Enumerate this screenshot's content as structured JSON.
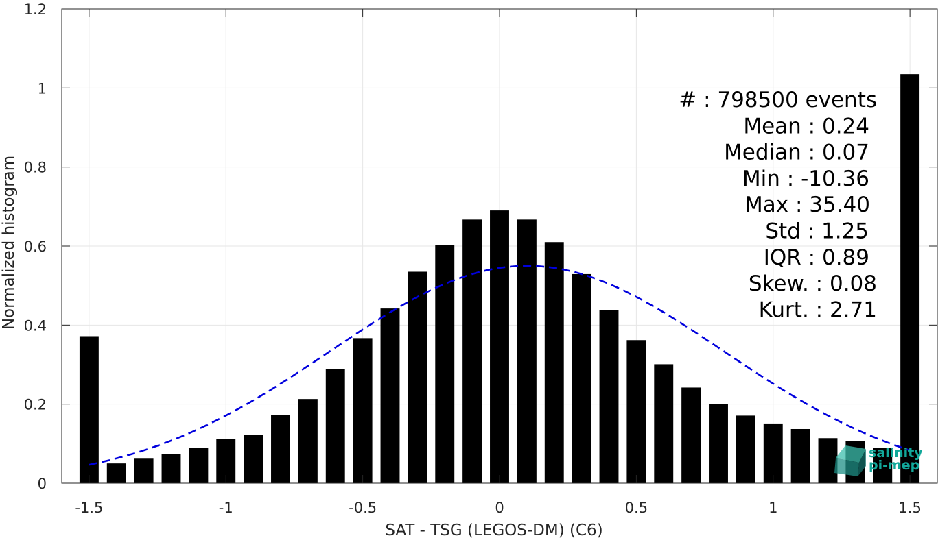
{
  "chart_data": {
    "type": "bar",
    "xlabel": "SAT - TSG (LEGOS-DM) (C6)",
    "ylabel": "Normalized histogram",
    "xlim": [
      -1.6,
      1.6
    ],
    "ylim": [
      0,
      1.2
    ],
    "xticks": [
      -1.5,
      -1,
      -0.5,
      0,
      0.5,
      1,
      1.5
    ],
    "xtick_labels": [
      "-1.5",
      "-1",
      "-0.5",
      "0",
      "0.5",
      "1",
      "1.5"
    ],
    "yticks": [
      0,
      0.2,
      0.4,
      0.6,
      0.8,
      1,
      1.2
    ],
    "ytick_labels": [
      "0",
      "0.2",
      "0.4",
      "0.6",
      "0.8",
      "1",
      "1.2"
    ],
    "grid": true,
    "bar_width": 0.07,
    "x": [
      -1.5,
      -1.4,
      -1.3,
      -1.2,
      -1.1,
      -1.0,
      -0.9,
      -0.8,
      -0.7,
      -0.6,
      -0.5,
      -0.4,
      -0.3,
      -0.2,
      -0.1,
      0.0,
      0.1,
      0.2,
      0.3,
      0.4,
      0.5,
      0.6,
      0.7,
      0.8,
      0.9,
      1.0,
      1.1,
      1.2,
      1.3,
      1.4,
      1.5
    ],
    "values": [
      0.372,
      0.05,
      0.062,
      0.074,
      0.09,
      0.111,
      0.123,
      0.173,
      0.213,
      0.289,
      0.367,
      0.442,
      0.535,
      0.602,
      0.667,
      0.69,
      0.667,
      0.61,
      0.529,
      0.437,
      0.362,
      0.301,
      0.242,
      0.2,
      0.171,
      0.151,
      0.137,
      0.114,
      0.107,
      0.089,
      1.035
    ],
    "fit_curve": {
      "style": "dashed",
      "color": "#0000dd",
      "mean": 0.1,
      "std": 0.72,
      "peak": 0.55,
      "x_range": [
        -1.5,
        1.5
      ]
    },
    "bar_color": "#000000",
    "stats": [
      "#  : 798500 events",
      "Mean : 0.24",
      "Median : 0.07",
      "Min : -10.36",
      "Max : 35.40",
      "Std : 1.25",
      "IQR : 0.89",
      "Skew. : 0.08",
      "Kurt. : 2.71"
    ],
    "stats_placement": "top-right"
  },
  "logo": {
    "line1": "salinity",
    "line2": "pi-mep"
  }
}
